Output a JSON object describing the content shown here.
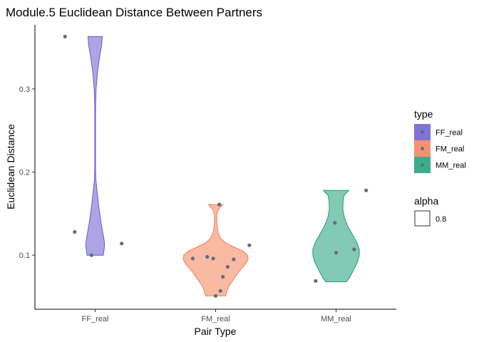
{
  "chart_data": {
    "type": "violin",
    "title": "Module.5 Euclidean Distance Between Partners",
    "xlabel": "Pair Type",
    "ylabel": "Euclidean Distance",
    "categories": [
      "FF_real",
      "FM_real",
      "MM_real"
    ],
    "ylim": [
      0.035,
      0.377
    ],
    "yticks": [
      0.1,
      0.2,
      0.3
    ],
    "ytick_labels": [
      "0.1",
      "0.2",
      "0.3"
    ],
    "grid": false,
    "legend_position": "right",
    "colors": {
      "FF_real": "#6a5acd",
      "FM_real": "#f47f55",
      "MM_real": "#1b9e77",
      "point": "#5f6e7a"
    },
    "violins": [
      {
        "category": "FF_real",
        "profile": [
          [
            0.1,
            0.7
          ],
          [
            0.105,
            0.75
          ],
          [
            0.11,
            0.8
          ],
          [
            0.115,
            0.8
          ],
          [
            0.12,
            0.75
          ],
          [
            0.13,
            0.62
          ],
          [
            0.14,
            0.5
          ],
          [
            0.15,
            0.4
          ],
          [
            0.16,
            0.3
          ],
          [
            0.17,
            0.22
          ],
          [
            0.18,
            0.14
          ],
          [
            0.19,
            0.07
          ],
          [
            0.2,
            0.035
          ],
          [
            0.22,
            0.03
          ],
          [
            0.24,
            0.03
          ],
          [
            0.26,
            0.03
          ],
          [
            0.28,
            0.035
          ],
          [
            0.3,
            0.08
          ],
          [
            0.32,
            0.2
          ],
          [
            0.34,
            0.4
          ],
          [
            0.352,
            0.55
          ],
          [
            0.363,
            0.62
          ]
        ]
      },
      {
        "category": "FM_real",
        "profile": [
          [
            0.051,
            0.85
          ],
          [
            0.055,
            0.95
          ],
          [
            0.06,
            1.05
          ],
          [
            0.065,
            1.25
          ],
          [
            0.07,
            1.5
          ],
          [
            0.075,
            1.75
          ],
          [
            0.08,
            2.0
          ],
          [
            0.085,
            2.3
          ],
          [
            0.09,
            2.6
          ],
          [
            0.095,
            2.8
          ],
          [
            0.1,
            2.75
          ],
          [
            0.105,
            2.35
          ],
          [
            0.11,
            1.55
          ],
          [
            0.115,
            0.85
          ],
          [
            0.12,
            0.45
          ],
          [
            0.125,
            0.28
          ],
          [
            0.13,
            0.18
          ],
          [
            0.14,
            0.1
          ],
          [
            0.15,
            0.11
          ],
          [
            0.155,
            0.25
          ],
          [
            0.161,
            0.62
          ]
        ]
      },
      {
        "category": "MM_real",
        "profile": [
          [
            0.068,
            0.9
          ],
          [
            0.073,
            1.15
          ],
          [
            0.078,
            1.35
          ],
          [
            0.085,
            1.6
          ],
          [
            0.092,
            1.85
          ],
          [
            0.1,
            2.0
          ],
          [
            0.107,
            2.0
          ],
          [
            0.115,
            1.8
          ],
          [
            0.125,
            1.4
          ],
          [
            0.135,
            1.0
          ],
          [
            0.145,
            0.72
          ],
          [
            0.155,
            0.58
          ],
          [
            0.165,
            0.6
          ],
          [
            0.172,
            0.7
          ],
          [
            0.178,
            1.1
          ]
        ]
      }
    ],
    "points": [
      {
        "category": "FF_real",
        "jitter": -0.25,
        "y": 0.363
      },
      {
        "category": "FF_real",
        "jitter": -0.17,
        "y": 0.128
      },
      {
        "category": "FF_real",
        "jitter": 0.22,
        "y": 0.114
      },
      {
        "category": "FF_real",
        "jitter": -0.03,
        "y": 0.1
      },
      {
        "category": "FM_real",
        "jitter": 0.03,
        "y": 0.161
      },
      {
        "category": "FM_real",
        "jitter": 0.28,
        "y": 0.112
      },
      {
        "category": "FM_real",
        "jitter": -0.07,
        "y": 0.098
      },
      {
        "category": "FM_real",
        "jitter": -0.19,
        "y": 0.096
      },
      {
        "category": "FM_real",
        "jitter": -0.02,
        "y": 0.096
      },
      {
        "category": "FM_real",
        "jitter": 0.15,
        "y": 0.095
      },
      {
        "category": "FM_real",
        "jitter": 0.1,
        "y": 0.086
      },
      {
        "category": "FM_real",
        "jitter": 0.06,
        "y": 0.074
      },
      {
        "category": "FM_real",
        "jitter": 0.04,
        "y": 0.057
      },
      {
        "category": "FM_real",
        "jitter": 0.0,
        "y": 0.051
      },
      {
        "category": "MM_real",
        "jitter": 0.25,
        "y": 0.178
      },
      {
        "category": "MM_real",
        "jitter": -0.01,
        "y": 0.139
      },
      {
        "category": "MM_real",
        "jitter": 0.15,
        "y": 0.107
      },
      {
        "category": "MM_real",
        "jitter": 0.0,
        "y": 0.103
      },
      {
        "category": "MM_real",
        "jitter": -0.17,
        "y": 0.069
      }
    ],
    "legend": {
      "type_title": "type",
      "type_items": [
        "FF_real",
        "FM_real",
        "MM_real"
      ],
      "alpha_title": "alpha",
      "alpha_value": "0.8"
    }
  }
}
